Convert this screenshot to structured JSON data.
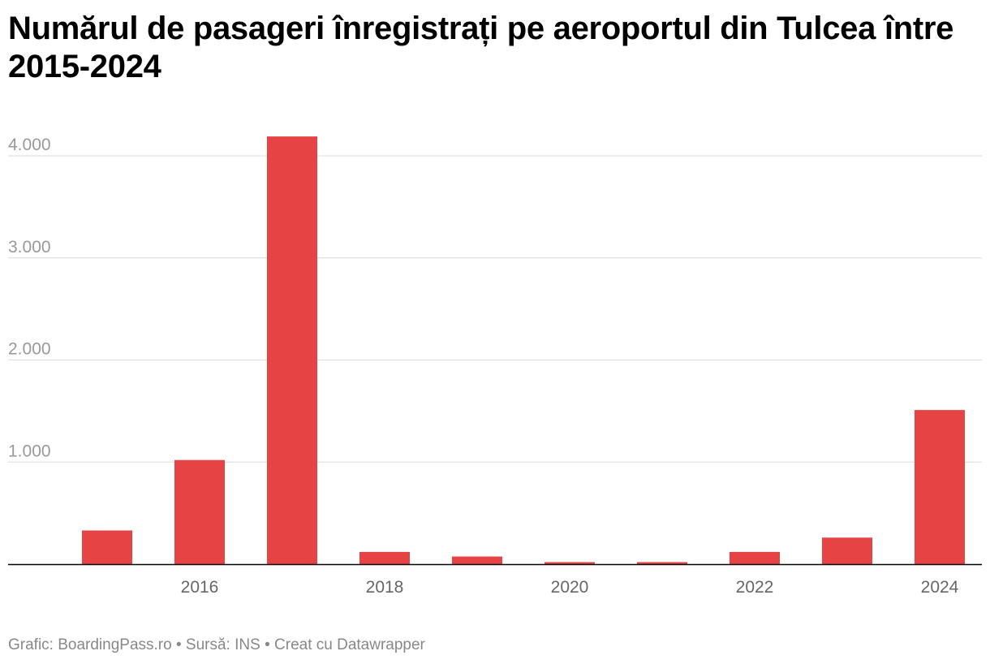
{
  "title": "Numărul de pasageri înregistrați pe aeroportul din Tulcea între 2015-2024",
  "footer": {
    "credit": "Grafic: BoardingPass.ro",
    "separator": " • ",
    "source": "Sursă: INS",
    "tool": "Creat cu Datawrapper"
  },
  "colors": {
    "bar": "#e64345",
    "grid": "#e0e0e0",
    "axis": "#000000",
    "tick_text": "#999999",
    "x_tick_text": "#666666"
  },
  "chart_data": {
    "type": "bar",
    "title": "Numărul de pasageri înregistrați pe aeroportul din Tulcea între 2015-2024",
    "xlabel": "",
    "ylabel": "",
    "categories": [
      "2015",
      "2016",
      "2017",
      "2018",
      "2019",
      "2020",
      "2021",
      "2022",
      "2023",
      "2024"
    ],
    "values": [
      330,
      1020,
      4190,
      120,
      75,
      20,
      20,
      120,
      260,
      1510
    ],
    "ylim": [
      0,
      4000
    ],
    "y_ticks": [
      1000,
      2000,
      3000,
      4000
    ],
    "y_tick_labels": [
      "1.000",
      "2.000",
      "3.000",
      "4.000"
    ],
    "x_tick_labels": [
      "2016",
      "2018",
      "2020",
      "2022",
      "2024"
    ],
    "grid": true,
    "legend": "none"
  }
}
